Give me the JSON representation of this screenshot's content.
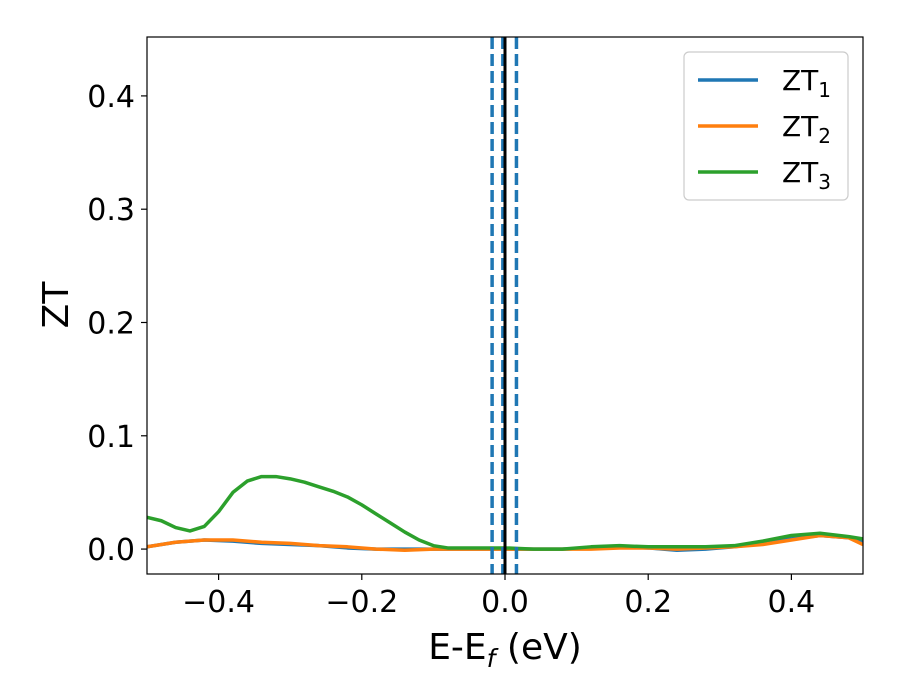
{
  "chart_data": {
    "type": "line",
    "xlabel": "E-E",
    "xlabel_sub": "f",
    "xlabel_unit": " (eV)",
    "ylabel": "ZT",
    "xlim": [
      -0.5,
      0.5
    ],
    "ylim": [
      -0.022,
      0.452
    ],
    "xticks": [
      -0.4,
      -0.2,
      0.0,
      0.2,
      0.4
    ],
    "xtick_labels": [
      "−0.4",
      "−0.2",
      "0.0",
      "0.2",
      "0.4"
    ],
    "yticks": [
      0.0,
      0.1,
      0.2,
      0.3,
      0.4
    ],
    "ytick_labels": [
      "0.0",
      "0.1",
      "0.2",
      "0.3",
      "0.4"
    ],
    "grid": false,
    "legend_position": "top-right",
    "series": [
      {
        "name": "ZT",
        "name_sub": "1",
        "color": "#1f77b4",
        "x": [
          -0.5,
          -0.46,
          -0.42,
          -0.38,
          -0.34,
          -0.3,
          -0.26,
          -0.22,
          -0.18,
          -0.14,
          -0.1,
          -0.06,
          -0.02,
          0.0,
          0.04,
          0.08,
          0.12,
          0.16,
          0.2,
          0.24,
          0.28,
          0.32,
          0.36,
          0.4,
          0.44,
          0.48,
          0.5
        ],
        "y": [
          0.002,
          0.006,
          0.008,
          0.007,
          0.005,
          0.004,
          0.003,
          0.001,
          0.0,
          0.0,
          0.0,
          0.0,
          0.0,
          0.0,
          0.0,
          0.0,
          0.001,
          0.002,
          0.001,
          -0.001,
          0.0,
          0.002,
          0.005,
          0.009,
          0.012,
          0.01,
          0.006
        ]
      },
      {
        "name": "ZT",
        "name_sub": "2",
        "color": "#ff7f0e",
        "x": [
          -0.5,
          -0.46,
          -0.42,
          -0.38,
          -0.34,
          -0.3,
          -0.26,
          -0.22,
          -0.18,
          -0.14,
          -0.1,
          -0.06,
          -0.02,
          0.0,
          0.04,
          0.08,
          0.12,
          0.16,
          0.2,
          0.24,
          0.28,
          0.32,
          0.36,
          0.4,
          0.44,
          0.48,
          0.5
        ],
        "y": [
          0.002,
          0.006,
          0.008,
          0.008,
          0.006,
          0.005,
          0.003,
          0.002,
          0.0,
          -0.001,
          0.0,
          0.0,
          0.0,
          0.0,
          0.0,
          0.0,
          0.0,
          0.001,
          0.001,
          0.0,
          0.001,
          0.002,
          0.004,
          0.008,
          0.012,
          0.01,
          0.004
        ]
      },
      {
        "name": "ZT",
        "name_sub": "3",
        "color": "#2ca02c",
        "x": [
          -0.5,
          -0.48,
          -0.46,
          -0.44,
          -0.42,
          -0.4,
          -0.38,
          -0.36,
          -0.34,
          -0.32,
          -0.3,
          -0.28,
          -0.26,
          -0.24,
          -0.22,
          -0.2,
          -0.18,
          -0.16,
          -0.14,
          -0.12,
          -0.1,
          -0.08,
          -0.06,
          -0.04,
          -0.02,
          0.0,
          0.04,
          0.08,
          0.12,
          0.16,
          0.2,
          0.24,
          0.28,
          0.32,
          0.36,
          0.4,
          0.44,
          0.48,
          0.5
        ],
        "y": [
          0.028,
          0.025,
          0.019,
          0.016,
          0.02,
          0.033,
          0.05,
          0.06,
          0.064,
          0.064,
          0.062,
          0.059,
          0.055,
          0.051,
          0.046,
          0.039,
          0.031,
          0.023,
          0.015,
          0.008,
          0.003,
          0.001,
          0.001,
          0.001,
          0.001,
          0.001,
          0.0,
          0.0,
          0.002,
          0.003,
          0.002,
          0.002,
          0.002,
          0.003,
          0.007,
          0.012,
          0.014,
          0.011,
          0.009
        ]
      }
    ],
    "vlines": [
      {
        "x": -0.018,
        "style": "dashed",
        "color": "#1f77b4"
      },
      {
        "x": -0.003,
        "style": "dashed",
        "color": "#1f77b4"
      },
      {
        "x": 0.016,
        "style": "dashed",
        "color": "#1f77b4"
      },
      {
        "x": 0.0,
        "style": "solid",
        "color": "#000000"
      }
    ]
  }
}
